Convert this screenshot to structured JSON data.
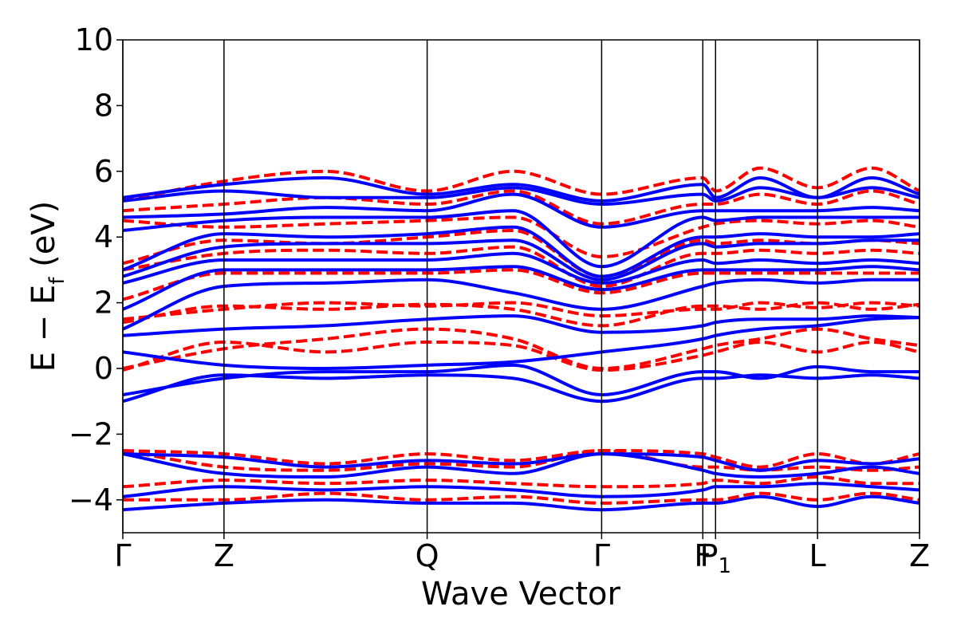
{
  "chart_data": {
    "type": "line",
    "xlabel": "Wave Vector",
    "ylabel": "E − E_f (eV)",
    "ylabel_parts": {
      "base": "E − E",
      "sub": "f",
      "unit": " (eV)"
    },
    "ylim": [
      -5,
      10
    ],
    "yticks": [
      -4,
      -2,
      0,
      2,
      4,
      6,
      8,
      10
    ],
    "ytick_labels": [
      "−4",
      "−2",
      "0",
      "2",
      "4",
      "6",
      "8",
      "10"
    ],
    "xlim": [
      0,
      1
    ],
    "high_symmetry_points": [
      {
        "label": "Γ",
        "sub": "",
        "x": 0.0
      },
      {
        "label": "Z",
        "sub": "",
        "x": 0.127
      },
      {
        "label": "Q",
        "sub": "",
        "x": 0.382
      },
      {
        "label": "Γ",
        "sub": "",
        "x": 0.601
      },
      {
        "label": "F",
        "sub": "",
        "x": 0.728
      },
      {
        "label": "P",
        "sub": "1",
        "x": 0.744
      },
      {
        "label": "L",
        "sub": "",
        "x": 0.872
      },
      {
        "label": "Z",
        "sub": "",
        "x": 1.0
      }
    ],
    "band_sets": [
      {
        "style": "solid",
        "color": "#0000ff",
        "knots_x": [
          0.0,
          0.127,
          0.255,
          0.382,
          0.49,
          0.601,
          0.728,
          0.744,
          0.8,
          0.872,
          0.94,
          1.0
        ],
        "bands": [
          [
            -4.3,
            -4.1,
            -4.0,
            -4.1,
            -4.1,
            -4.3,
            -4.1,
            -4.1,
            -3.9,
            -4.2,
            -3.9,
            -4.1
          ],
          [
            -3.9,
            -3.6,
            -3.7,
            -3.6,
            -3.7,
            -3.9,
            -3.7,
            -3.6,
            -3.6,
            -3.5,
            -3.6,
            -3.7
          ],
          [
            -2.6,
            -3.2,
            -3.3,
            -3.0,
            -3.2,
            -2.6,
            -3.1,
            -3.2,
            -3.3,
            -3.2,
            -3.0,
            -3.2
          ],
          [
            -2.6,
            -2.7,
            -3.0,
            -2.8,
            -2.9,
            -2.6,
            -2.7,
            -2.8,
            -3.1,
            -2.8,
            -2.9,
            -2.75
          ],
          [
            -1.0,
            -0.2,
            -0.3,
            -0.2,
            -0.3,
            -1.0,
            -0.3,
            -0.3,
            -0.2,
            -0.3,
            -0.2,
            -0.3
          ],
          [
            -0.8,
            -0.3,
            -0.1,
            -0.1,
            0.1,
            -0.8,
            -0.1,
            -0.1,
            -0.3,
            0.05,
            -0.1,
            -0.1
          ],
          [
            0.5,
            0.1,
            0.0,
            0.1,
            0.2,
            0.5,
            0.9,
            1.0,
            1.2,
            1.3,
            1.5,
            1.55
          ],
          [
            1.0,
            1.2,
            1.3,
            1.5,
            1.6,
            1.1,
            1.3,
            1.4,
            1.5,
            1.5,
            1.6,
            1.55
          ],
          [
            1.2,
            2.5,
            2.6,
            2.7,
            2.3,
            1.8,
            2.5,
            2.6,
            2.7,
            2.6,
            2.7,
            2.7
          ],
          [
            1.8,
            3.0,
            3.0,
            3.0,
            3.1,
            2.4,
            3.0,
            3.0,
            3.0,
            3.0,
            3.1,
            3.0
          ],
          [
            2.6,
            3.3,
            3.3,
            3.3,
            3.5,
            2.6,
            3.3,
            3.2,
            3.3,
            3.2,
            3.3,
            3.2
          ],
          [
            2.8,
            3.7,
            3.8,
            3.8,
            3.9,
            2.7,
            3.8,
            3.7,
            3.8,
            3.8,
            3.9,
            3.9
          ],
          [
            3.0,
            4.1,
            4.0,
            4.1,
            4.3,
            2.8,
            4.0,
            4.0,
            4.1,
            4.0,
            4.0,
            4.1
          ],
          [
            4.2,
            4.5,
            4.6,
            4.6,
            4.8,
            3.1,
            4.6,
            4.5,
            4.6,
            4.6,
            4.6,
            4.6
          ],
          [
            4.6,
            4.7,
            4.9,
            4.8,
            5.3,
            4.3,
            4.8,
            4.8,
            4.8,
            4.8,
            4.9,
            4.8
          ],
          [
            5.1,
            5.4,
            5.2,
            5.2,
            5.5,
            5.0,
            5.3,
            5.1,
            5.5,
            5.2,
            5.5,
            5.2
          ],
          [
            5.2,
            5.6,
            5.8,
            5.3,
            5.6,
            5.1,
            5.6,
            5.2,
            5.8,
            5.2,
            5.8,
            5.3
          ]
        ]
      },
      {
        "style": "dashed",
        "color": "#ff0000",
        "knots_x": [
          0.0,
          0.127,
          0.255,
          0.382,
          0.49,
          0.601,
          0.728,
          0.744,
          0.8,
          0.872,
          0.94,
          1.0
        ],
        "bands": [
          [
            -4.0,
            -4.0,
            -3.8,
            -4.0,
            -3.9,
            -4.1,
            -4.0,
            -4.0,
            -3.8,
            -4.0,
            -3.8,
            -4.0
          ],
          [
            -3.6,
            -3.4,
            -3.5,
            -3.4,
            -3.5,
            -3.6,
            -3.5,
            -3.4,
            -3.5,
            -3.3,
            -3.5,
            -3.5
          ],
          [
            -2.5,
            -3.0,
            -3.1,
            -2.9,
            -3.0,
            -2.5,
            -3.0,
            -3.0,
            -3.1,
            -3.0,
            -3.1,
            -3.0
          ],
          [
            -2.5,
            -2.6,
            -2.9,
            -2.6,
            -2.8,
            -2.5,
            -2.6,
            -2.7,
            -3.0,
            -2.6,
            -2.9,
            -2.6
          ],
          [
            -0.05,
            0.8,
            0.5,
            0.8,
            0.7,
            -0.05,
            0.4,
            0.5,
            0.8,
            0.5,
            0.8,
            0.5
          ],
          [
            0.0,
            0.6,
            0.9,
            1.2,
            0.9,
            0.0,
            0.6,
            0.7,
            0.9,
            1.2,
            0.9,
            0.7
          ],
          [
            1.4,
            1.9,
            1.8,
            1.95,
            1.8,
            1.3,
            1.9,
            1.9,
            1.8,
            2.0,
            1.8,
            1.95
          ],
          [
            1.5,
            1.8,
            2.0,
            1.9,
            2.0,
            1.6,
            1.8,
            1.8,
            2.0,
            1.85,
            2.0,
            1.9
          ],
          [
            2.1,
            2.9,
            2.9,
            2.9,
            3.0,
            2.3,
            2.9,
            2.9,
            2.9,
            2.9,
            2.9,
            2.9
          ],
          [
            3.0,
            3.5,
            3.6,
            3.5,
            3.7,
            2.5,
            3.5,
            3.5,
            3.6,
            3.5,
            3.6,
            3.5
          ],
          [
            3.2,
            3.9,
            3.8,
            4.0,
            4.2,
            2.8,
            3.9,
            3.8,
            3.9,
            3.8,
            3.9,
            3.8
          ],
          [
            4.5,
            4.3,
            4.4,
            4.5,
            4.6,
            3.4,
            4.3,
            4.4,
            4.5,
            4.4,
            4.5,
            4.3
          ],
          [
            4.8,
            5.0,
            5.2,
            5.0,
            5.4,
            4.4,
            5.0,
            5.0,
            5.3,
            5.0,
            5.4,
            5.0
          ],
          [
            5.1,
            5.7,
            6.0,
            5.4,
            6.0,
            5.3,
            5.8,
            5.4,
            6.1,
            5.5,
            6.1,
            5.4
          ]
        ]
      }
    ],
    "grid": false,
    "legend": "none"
  }
}
